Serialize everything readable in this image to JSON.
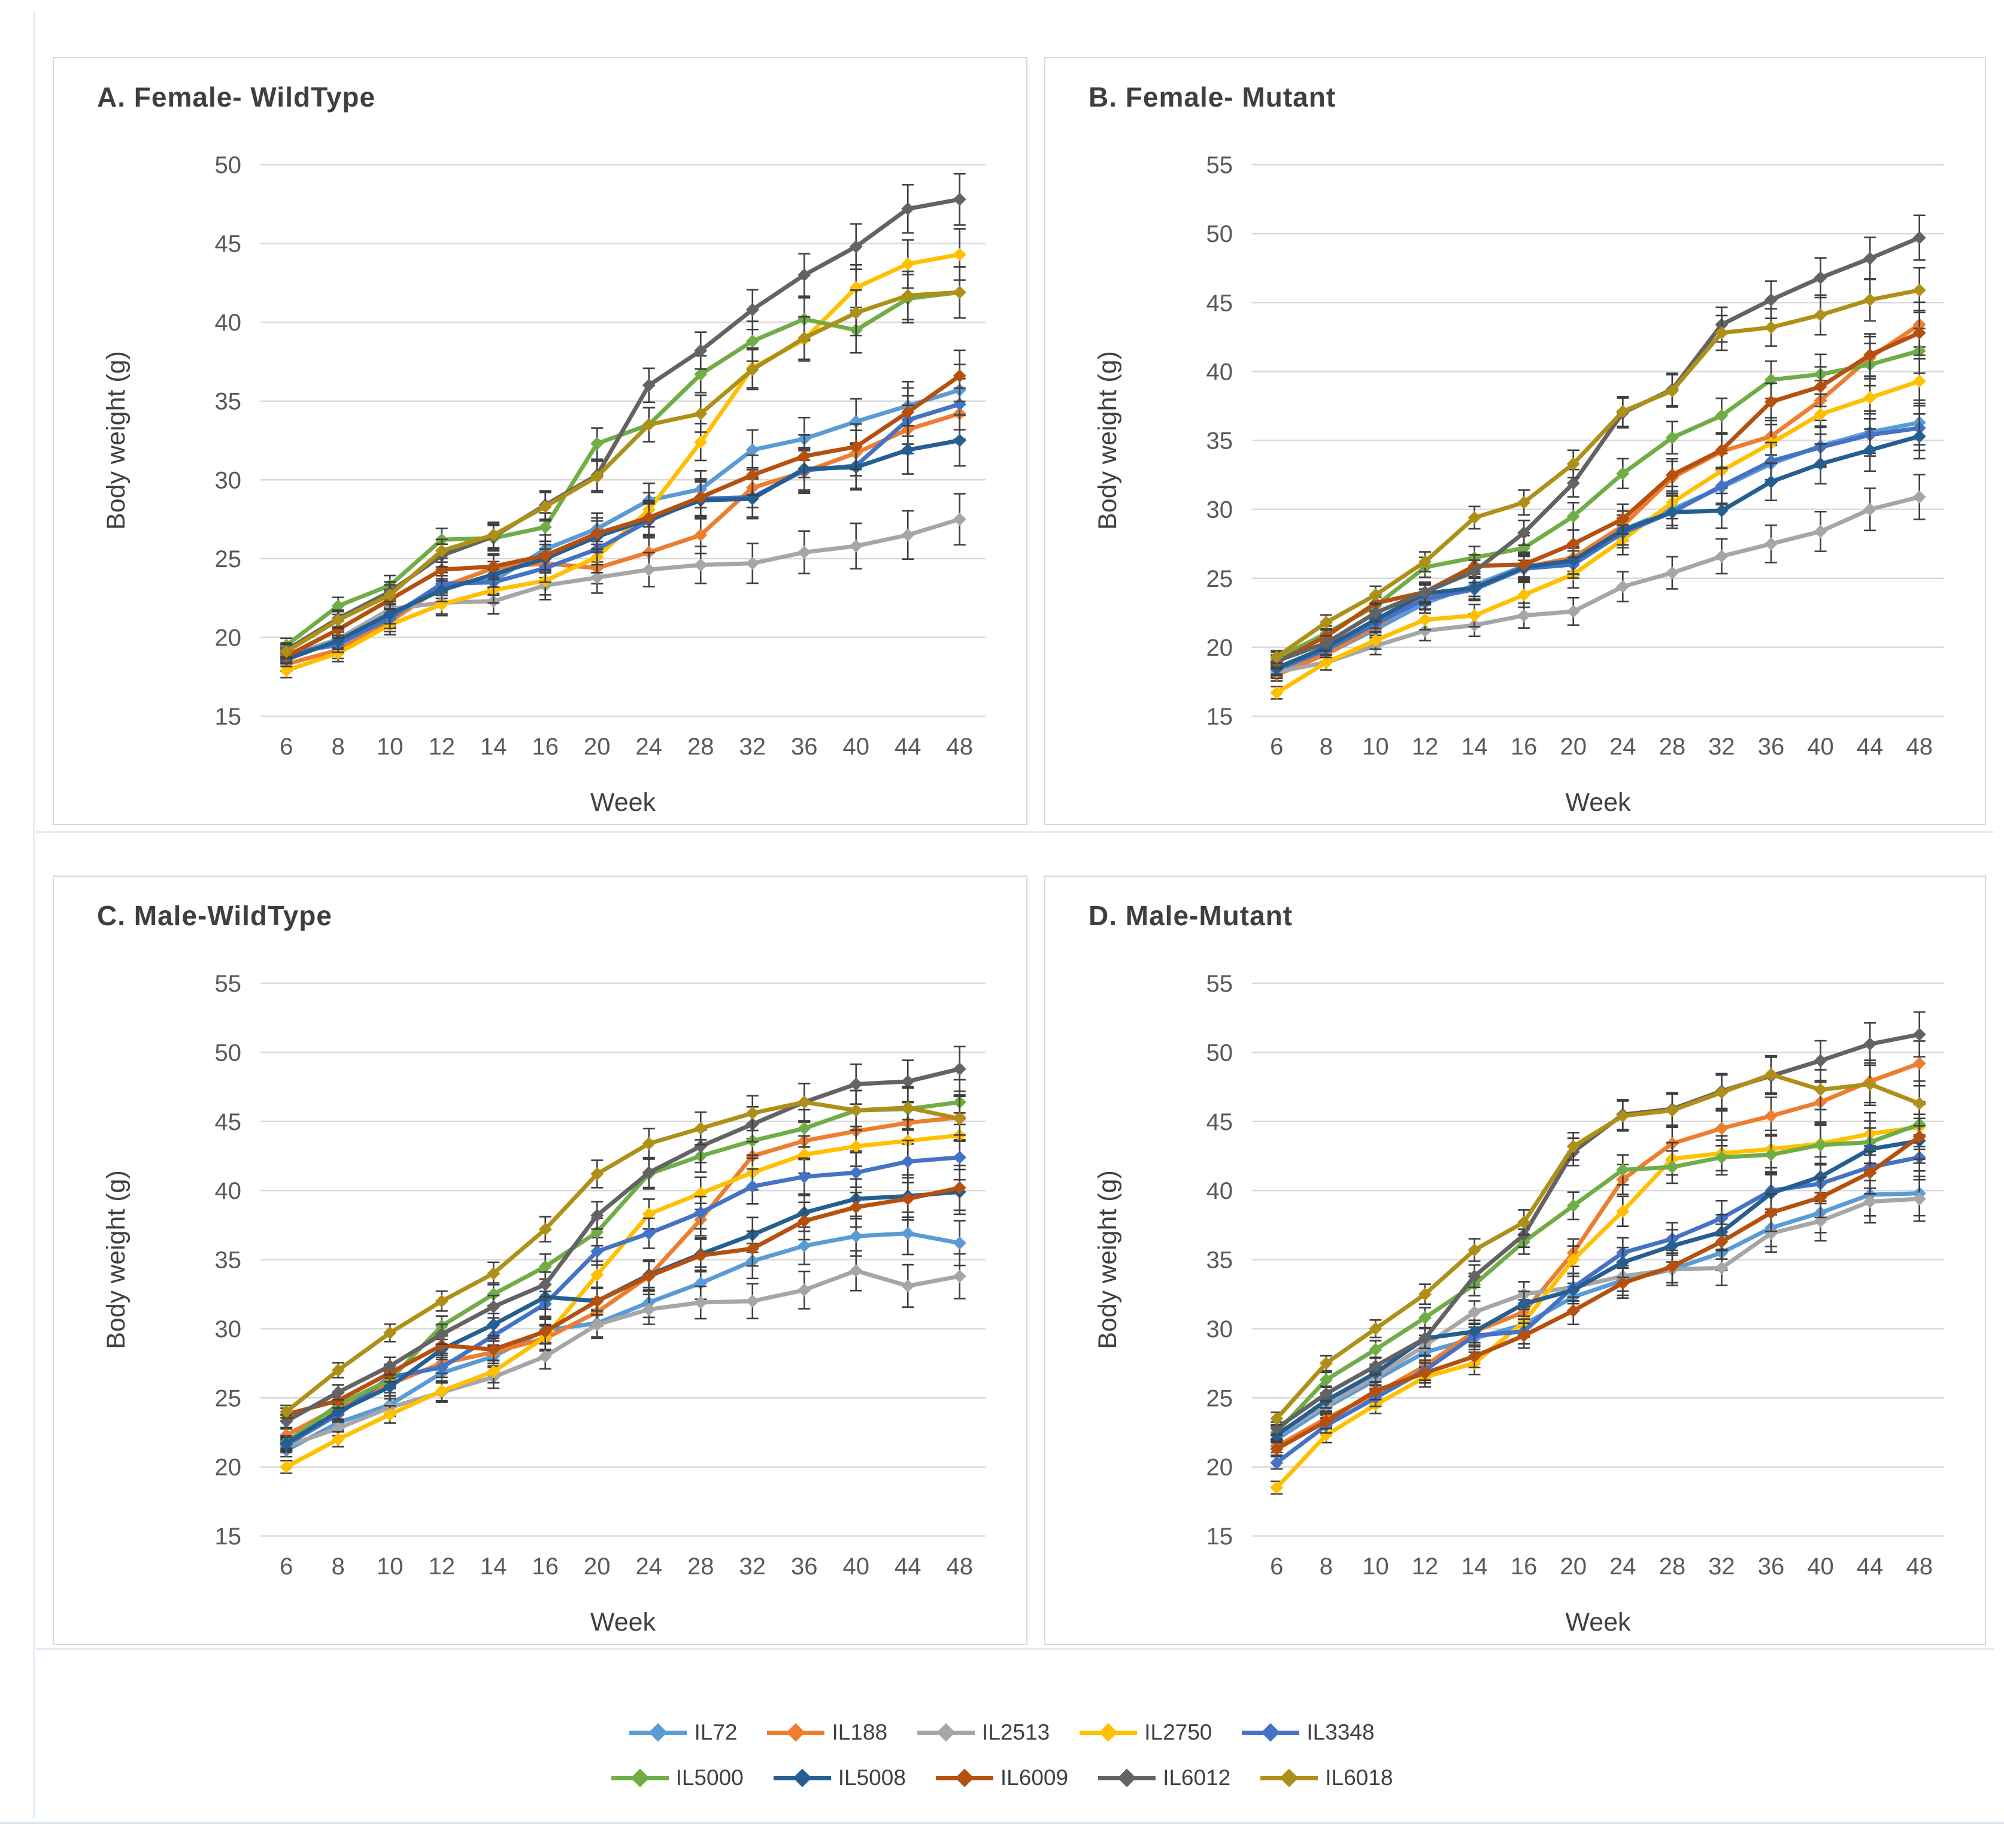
{
  "figure": {
    "xlabel": "Week",
    "ylabel": "Body weight (g)",
    "error_bars_note": "Vertical error bars shown on points, roughly ±0.5 to ±2 g, larger at older ages"
  },
  "legend": {
    "rows": [
      [
        "IL72",
        "IL188",
        "IL2513",
        "IL2750",
        "IL3348"
      ],
      [
        "IL5000",
        "IL5008",
        "IL6009",
        "IL6012",
        "IL6018"
      ]
    ]
  },
  "colors": {
    "IL72": "#5B9BD5",
    "IL188": "#ED7D31",
    "IL2513": "#A6A6A6",
    "IL2750": "#FFC000",
    "IL3348": "#4472C4",
    "IL5000": "#70AD47",
    "IL5008": "#255E91",
    "IL6009": "#B5500F",
    "IL6012": "#636363",
    "IL6018": "#AE9019"
  },
  "chart_data": [
    {
      "type": "line",
      "panel_label": "A. Female- WildType",
      "xlabel": "Week",
      "ylabel": "Body weight (g)",
      "x": [
        6,
        8,
        10,
        12,
        14,
        16,
        20,
        24,
        28,
        32,
        36,
        40,
        44,
        48
      ],
      "ylim": [
        15,
        50
      ],
      "yticks": [
        15,
        20,
        25,
        30,
        35,
        40,
        45,
        50
      ],
      "grid": true,
      "legend_position": "shared-bottom",
      "series": [
        {
          "name": "IL72",
          "values": [
            19.0,
            19.5,
            21.3,
            23.4,
            23.6,
            25.6,
            26.9,
            28.7,
            29.4,
            31.9,
            32.6,
            33.7,
            34.7,
            35.7
          ]
        },
        {
          "name": "IL188",
          "values": [
            18.3,
            19.2,
            21.0,
            23.2,
            24.4,
            24.7,
            24.4,
            25.4,
            26.5,
            29.5,
            30.5,
            31.7,
            33.2,
            34.2
          ]
        },
        {
          "name": "IL2513",
          "values": [
            18.8,
            19.9,
            21.8,
            22.2,
            22.3,
            23.3,
            23.8,
            24.3,
            24.6,
            24.7,
            25.4,
            25.8,
            26.5,
            27.5
          ]
        },
        {
          "name": "IL2750",
          "values": [
            17.9,
            19.0,
            20.8,
            22.1,
            23.0,
            23.6,
            25.1,
            28.1,
            32.4,
            37.1,
            38.9,
            42.2,
            43.7,
            44.3
          ]
        },
        {
          "name": "IL3348",
          "values": [
            18.9,
            19.6,
            21.2,
            23.4,
            23.5,
            24.4,
            25.6,
            27.4,
            28.8,
            28.9,
            30.6,
            30.9,
            33.8,
            34.8
          ]
        },
        {
          "name": "IL5000",
          "values": [
            19.5,
            22.0,
            23.3,
            26.2,
            26.3,
            27.0,
            32.3,
            33.5,
            36.7,
            38.8,
            40.2,
            39.5,
            41.5,
            41.9
          ]
        },
        {
          "name": "IL5008",
          "values": [
            18.6,
            19.8,
            21.5,
            23.0,
            24.0,
            25.0,
            26.4,
            27.5,
            28.7,
            28.8,
            30.7,
            30.8,
            31.9,
            32.5
          ]
        },
        {
          "name": "IL6009",
          "values": [
            18.8,
            20.5,
            22.4,
            24.3,
            24.5,
            25.2,
            26.6,
            27.6,
            28.9,
            30.3,
            31.5,
            32.1,
            34.3,
            36.6
          ]
        },
        {
          "name": "IL6012",
          "values": [
            19.2,
            21.2,
            22.9,
            25.2,
            26.4,
            28.4,
            30.3,
            36.0,
            38.2,
            40.8,
            43.0,
            44.8,
            47.2,
            47.8
          ]
        },
        {
          "name": "IL6018",
          "values": [
            19.1,
            21.1,
            22.7,
            25.5,
            26.5,
            28.3,
            30.2,
            33.5,
            34.2,
            37.0,
            39.0,
            40.6,
            41.7,
            41.9
          ]
        }
      ]
    },
    {
      "type": "line",
      "panel_label": "B. Female- Mutant",
      "xlabel": "Week",
      "ylabel": "Body weight (g)",
      "x": [
        6,
        8,
        10,
        12,
        14,
        16,
        20,
        24,
        28,
        32,
        36,
        40,
        44,
        48
      ],
      "ylim": [
        15,
        55
      ],
      "yticks": [
        15,
        20,
        25,
        30,
        35,
        40,
        45,
        50,
        55
      ],
      "grid": true,
      "legend_position": "shared-bottom",
      "series": [
        {
          "name": "IL72",
          "values": [
            18.3,
            19.5,
            21.3,
            23.2,
            24.5,
            25.9,
            26.2,
            28.5,
            30.0,
            31.6,
            33.3,
            34.6,
            35.6,
            36.3
          ]
        },
        {
          "name": "IL188",
          "values": [
            18.0,
            19.5,
            21.5,
            23.8,
            24.2,
            25.8,
            26.5,
            28.8,
            32.3,
            34.2,
            35.3,
            37.9,
            41.0,
            43.4
          ]
        },
        {
          "name": "IL2513",
          "values": [
            18.2,
            18.9,
            20.1,
            21.2,
            21.6,
            22.3,
            22.6,
            24.4,
            25.4,
            26.6,
            27.5,
            28.4,
            30.0,
            30.9
          ]
        },
        {
          "name": "IL2750",
          "values": [
            16.7,
            18.9,
            20.5,
            22.0,
            22.3,
            23.8,
            25.3,
            27.8,
            30.5,
            32.8,
            34.8,
            36.9,
            38.1,
            39.3
          ]
        },
        {
          "name": "IL3348",
          "values": [
            18.4,
            19.8,
            21.7,
            23.5,
            24.2,
            25.7,
            26.0,
            28.3,
            29.8,
            31.7,
            33.5,
            34.5,
            35.4,
            35.9
          ]
        },
        {
          "name": "IL5000",
          "values": [
            19.2,
            21.0,
            23.0,
            25.8,
            26.5,
            27.2,
            29.5,
            32.6,
            35.2,
            36.8,
            39.4,
            39.8,
            40.5,
            41.5
          ]
        },
        {
          "name": "IL5008",
          "values": [
            18.5,
            20.0,
            22.0,
            23.9,
            24.3,
            25.8,
            26.3,
            28.5,
            29.8,
            29.9,
            32.0,
            33.3,
            34.3,
            35.3
          ]
        },
        {
          "name": "IL6009",
          "values": [
            18.9,
            20.8,
            23.2,
            24.0,
            25.9,
            26.0,
            27.5,
            29.3,
            32.5,
            34.3,
            37.8,
            38.9,
            41.2,
            42.8
          ]
        },
        {
          "name": "IL6012",
          "values": [
            19.0,
            20.3,
            22.5,
            24.0,
            25.5,
            28.3,
            31.9,
            37.0,
            38.7,
            43.4,
            45.2,
            46.8,
            48.2,
            49.7
          ]
        },
        {
          "name": "IL6018",
          "values": [
            19.3,
            21.8,
            23.8,
            26.2,
            29.4,
            30.5,
            33.3,
            37.1,
            38.6,
            42.8,
            43.2,
            44.1,
            45.2,
            45.9
          ]
        }
      ]
    },
    {
      "type": "line",
      "panel_label": "C. Male-WildType",
      "xlabel": "Week",
      "ylabel": "Body weight (g)",
      "x": [
        6,
        8,
        10,
        12,
        14,
        16,
        20,
        24,
        28,
        32,
        36,
        40,
        44,
        48
      ],
      "ylim": [
        15,
        55
      ],
      "yticks": [
        15,
        20,
        25,
        30,
        35,
        40,
        45,
        50,
        55
      ],
      "grid": true,
      "legend_position": "shared-bottom",
      "series": [
        {
          "name": "IL72",
          "values": [
            21.2,
            23.2,
            24.5,
            26.8,
            28.0,
            29.9,
            30.4,
            31.9,
            33.3,
            34.9,
            36.0,
            36.7,
            36.9,
            36.2
          ]
        },
        {
          "name": "IL188",
          "values": [
            22.3,
            24.3,
            26.0,
            27.5,
            28.3,
            29.3,
            31.2,
            33.8,
            37.9,
            42.5,
            43.6,
            44.3,
            44.9,
            45.3
          ]
        },
        {
          "name": "IL2513",
          "values": [
            21.5,
            22.8,
            24.3,
            25.4,
            26.5,
            28.0,
            30.3,
            31.4,
            31.9,
            32.0,
            32.8,
            34.2,
            33.1,
            33.8
          ]
        },
        {
          "name": "IL2750",
          "values": [
            20.0,
            22.0,
            23.8,
            25.5,
            26.9,
            29.4,
            33.9,
            38.3,
            39.8,
            41.3,
            42.6,
            43.2,
            43.6,
            44.0
          ]
        },
        {
          "name": "IL3348",
          "values": [
            21.6,
            23.8,
            26.5,
            27.2,
            29.5,
            31.8,
            35.6,
            36.9,
            38.4,
            40.3,
            41.0,
            41.3,
            42.1,
            42.4
          ]
        },
        {
          "name": "IL5000",
          "values": [
            21.8,
            24.5,
            26.3,
            30.2,
            32.5,
            34.5,
            37.0,
            41.2,
            42.5,
            43.6,
            44.5,
            45.8,
            45.9,
            46.4
          ]
        },
        {
          "name": "IL5008",
          "values": [
            21.7,
            24.0,
            25.8,
            28.5,
            30.3,
            32.3,
            32.0,
            33.9,
            35.4,
            36.8,
            38.4,
            39.4,
            39.6,
            39.9
          ]
        },
        {
          "name": "IL6009",
          "values": [
            23.8,
            24.8,
            26.8,
            28.8,
            28.5,
            29.8,
            32.0,
            33.8,
            35.3,
            35.8,
            37.8,
            38.8,
            39.4,
            40.2
          ]
        },
        {
          "name": "IL6012",
          "values": [
            23.3,
            25.4,
            27.3,
            29.6,
            31.6,
            33.2,
            38.2,
            41.3,
            43.2,
            44.8,
            46.4,
            47.7,
            47.9,
            48.8
          ]
        },
        {
          "name": "IL6018",
          "values": [
            24.0,
            27.0,
            29.7,
            32.0,
            34.0,
            37.2,
            41.2,
            43.4,
            44.5,
            45.6,
            46.4,
            45.8,
            46.0,
            45.2
          ]
        }
      ]
    },
    {
      "type": "line",
      "panel_label": "D. Male-Mutant",
      "xlabel": "Week",
      "ylabel": "Body weight (g)",
      "x": [
        6,
        8,
        10,
        12,
        14,
        16,
        20,
        24,
        28,
        32,
        36,
        40,
        44,
        48
      ],
      "ylim": [
        15,
        55
      ],
      "yticks": [
        15,
        20,
        25,
        30,
        35,
        40,
        45,
        50,
        55
      ],
      "grid": true,
      "legend_position": "shared-bottom",
      "series": [
        {
          "name": "IL72",
          "values": [
            22.0,
            24.3,
            26.3,
            28.3,
            29.3,
            30.3,
            32.3,
            33.5,
            34.3,
            35.5,
            37.3,
            38.4,
            39.7,
            39.8
          ]
        },
        {
          "name": "IL188",
          "values": [
            21.5,
            23.5,
            25.3,
            27.3,
            29.8,
            31.2,
            35.5,
            40.8,
            43.4,
            44.5,
            45.4,
            46.4,
            47.9,
            49.2
          ]
        },
        {
          "name": "IL2513",
          "values": [
            22.3,
            24.5,
            26.5,
            28.8,
            31.2,
            32.5,
            33.0,
            33.8,
            34.3,
            34.4,
            36.9,
            37.8,
            39.2,
            39.4
          ]
        },
        {
          "name": "IL2750",
          "values": [
            18.5,
            22.3,
            24.5,
            26.5,
            27.5,
            30.5,
            35.0,
            38.5,
            42.3,
            42.7,
            43.0,
            43.4,
            44.1,
            44.6
          ]
        },
        {
          "name": "IL3348",
          "values": [
            20.3,
            23.0,
            25.0,
            27.0,
            29.5,
            29.8,
            33.0,
            35.5,
            36.5,
            38.0,
            40.0,
            40.5,
            41.7,
            42.4
          ]
        },
        {
          "name": "IL5000",
          "values": [
            22.5,
            26.3,
            28.5,
            30.8,
            33.2,
            36.3,
            38.9,
            41.5,
            41.7,
            42.4,
            42.6,
            43.3,
            43.5,
            44.8
          ]
        },
        {
          "name": "IL5008",
          "values": [
            22.3,
            24.8,
            26.8,
            29.3,
            29.8,
            31.8,
            32.8,
            34.8,
            36.0,
            37.0,
            39.8,
            41.0,
            43.0,
            43.6
          ]
        },
        {
          "name": "IL6009",
          "values": [
            21.3,
            23.3,
            25.5,
            26.8,
            28.0,
            29.5,
            31.3,
            33.3,
            34.5,
            36.3,
            38.4,
            39.5,
            41.3,
            43.9
          ]
        },
        {
          "name": "IL6012",
          "values": [
            22.8,
            25.3,
            27.3,
            29.3,
            33.8,
            36.8,
            42.8,
            45.5,
            45.9,
            47.2,
            48.3,
            49.4,
            50.6,
            51.3
          ]
        },
        {
          "name": "IL6018",
          "values": [
            23.5,
            27.5,
            30.0,
            32.5,
            35.7,
            37.7,
            43.2,
            45.4,
            45.8,
            47.1,
            48.4,
            47.3,
            47.7,
            46.3
          ]
        }
      ]
    }
  ]
}
